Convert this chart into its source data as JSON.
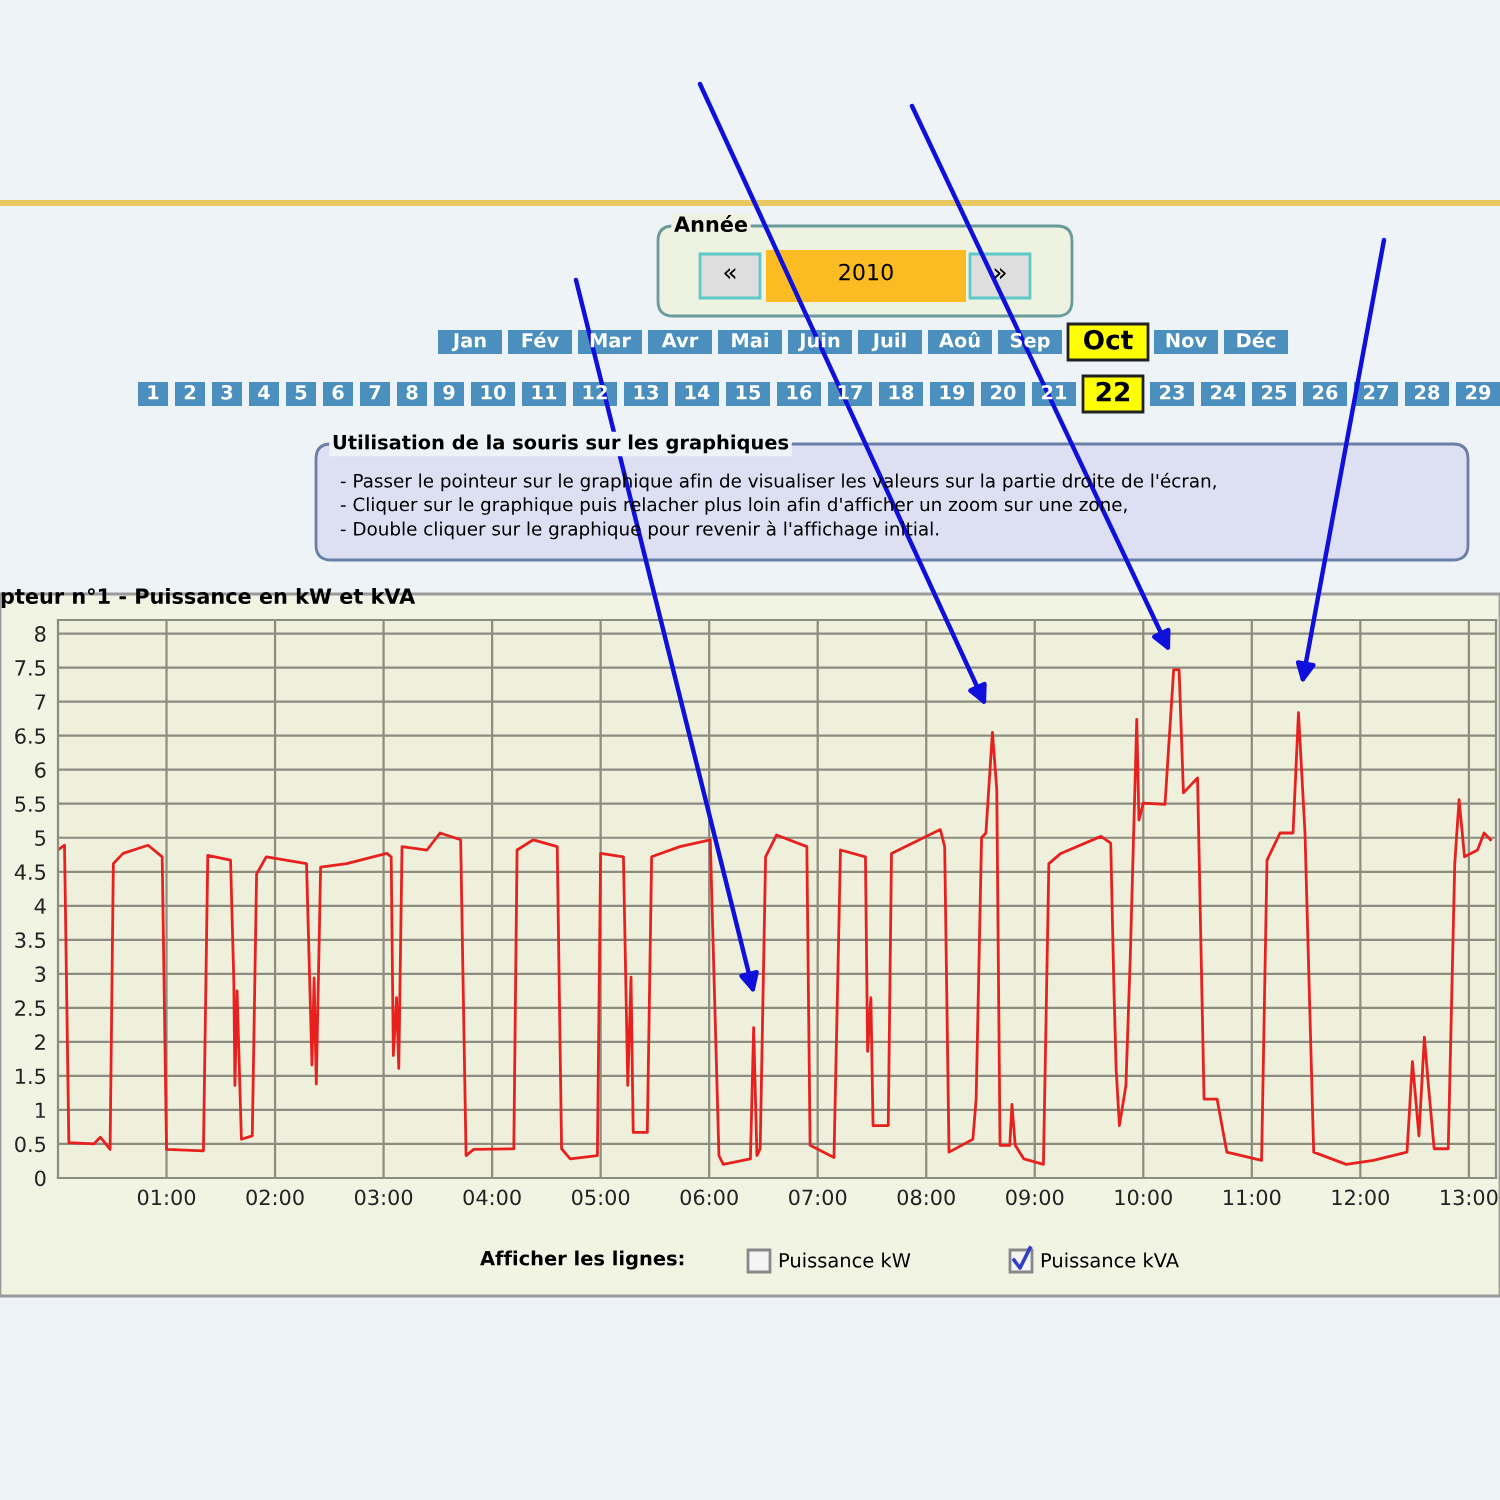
{
  "chart_data": {
    "type": "line",
    "title": "pteur n°1 - Puissance en kW et kVA",
    "x": [
      0,
      0.06,
      0.1,
      0.33,
      0.39,
      0.48,
      0.51,
      0.6,
      0.83,
      0.96,
      1.0,
      1.34,
      1.38,
      1.59,
      1.62,
      1.63,
      1.65,
      1.69,
      1.79,
      1.83,
      1.92,
      2.29,
      2.34,
      2.36,
      2.38,
      2.42,
      2.66,
      3.03,
      3.07,
      3.09,
      3.12,
      3.14,
      3.17,
      3.4,
      3.52,
      3.71,
      3.76,
      3.83,
      4.2,
      4.23,
      4.38,
      4.6,
      4.64,
      4.72,
      4.97,
      5.0,
      5.21,
      5.25,
      5.28,
      5.3,
      5.43,
      5.47,
      5.73,
      6.01,
      6.09,
      6.13,
      6.38,
      6.41,
      6.44,
      6.47,
      6.52,
      6.62,
      6.9,
      6.93,
      7.15,
      7.21,
      7.44,
      7.46,
      7.49,
      7.51,
      7.65,
      7.68,
      8.13,
      8.17,
      8.21,
      8.43,
      8.46,
      8.51,
      8.55,
      8.61,
      8.65,
      8.68,
      8.77,
      8.79,
      8.82,
      8.9,
      9.08,
      9.13,
      9.24,
      9.61,
      9.7,
      9.73,
      9.75,
      9.78,
      9.84,
      9.88,
      9.94,
      9.96,
      10.0,
      10.2,
      10.28,
      10.33,
      10.37,
      10.5,
      10.56,
      10.68,
      10.77,
      11.09,
      11.14,
      11.26,
      11.38,
      11.43,
      11.49,
      11.57,
      11.87,
      12.12,
      12.43,
      12.48,
      12.54,
      12.59,
      12.63,
      12.68,
      12.81,
      12.87,
      12.91,
      12.96,
      13.08,
      13.14,
      13.2
    ],
    "series": [
      {
        "color": "#e8201e",
        "values": [
          4.82,
          4.89,
          0.52,
          0.5,
          0.6,
          0.42,
          4.62,
          4.77,
          4.89,
          4.72,
          0.42,
          0.4,
          4.74,
          4.67,
          2.9,
          1.36,
          2.75,
          0.57,
          0.62,
          4.47,
          4.72,
          4.62,
          1.66,
          2.94,
          1.38,
          4.57,
          4.62,
          4.77,
          4.72,
          1.8,
          2.65,
          1.61,
          4.87,
          4.82,
          5.07,
          4.97,
          0.33,
          0.42,
          0.43,
          4.82,
          4.97,
          4.87,
          0.43,
          0.28,
          0.33,
          4.77,
          4.72,
          1.36,
          2.95,
          0.67,
          0.67,
          4.72,
          4.87,
          4.97,
          0.33,
          0.2,
          0.28,
          2.21,
          0.33,
          0.43,
          4.72,
          5.04,
          4.87,
          0.48,
          0.3,
          4.82,
          4.72,
          1.86,
          2.65,
          0.77,
          0.77,
          4.77,
          5.12,
          4.87,
          0.38,
          0.57,
          1.16,
          5.0,
          5.07,
          6.55,
          5.71,
          0.48,
          0.48,
          1.08,
          0.48,
          0.28,
          0.2,
          4.62,
          4.77,
          5.02,
          4.92,
          2.75,
          1.6,
          0.77,
          1.36,
          3.24,
          6.74,
          5.26,
          5.51,
          5.49,
          7.47,
          7.47,
          5.66,
          5.88,
          1.16,
          1.16,
          0.38,
          0.26,
          4.67,
          5.07,
          5.07,
          6.84,
          5.07,
          0.38,
          0.2,
          0.26,
          0.38,
          1.71,
          0.62,
          2.07,
          1.31,
          0.43,
          0.43,
          4.62,
          5.56,
          4.72,
          4.82,
          5.07,
          4.97
        ]
      }
    ],
    "xlim": [
      0,
      13.25
    ],
    "ylim": [
      0,
      8.2
    ],
    "xticks": [
      {
        "value": 1,
        "label": "01:00"
      },
      {
        "value": 2,
        "label": "02:00"
      },
      {
        "value": 3,
        "label": "03:00"
      },
      {
        "value": 4,
        "label": "04:00"
      },
      {
        "value": 5,
        "label": "05:00"
      },
      {
        "value": 6,
        "label": "06:00"
      },
      {
        "value": 7,
        "label": "07:00"
      },
      {
        "value": 8,
        "label": "08:00"
      },
      {
        "value": 9,
        "label": "09:00"
      },
      {
        "value": 10,
        "label": "10:00"
      },
      {
        "value": 11,
        "label": "11:00"
      },
      {
        "value": 12,
        "label": "12:00"
      },
      {
        "value": 13,
        "label": "13:00"
      }
    ],
    "yticks": [
      0,
      0.5,
      1,
      1.5,
      2,
      2.5,
      3,
      3.5,
      4,
      4.5,
      5,
      5.5,
      6,
      6.5,
      7,
      7.5,
      8
    ],
    "grid": true,
    "marker": "none",
    "line_style": "solid",
    "annotations": [
      "Année",
      "«",
      "2010",
      "»",
      "Jan",
      "Fév",
      "Mar",
      "Avr",
      "Mai",
      "Juin",
      "Juil",
      "Aoû",
      "Sep",
      "Oct",
      "Nov",
      "Déc",
      "1",
      "2",
      "3",
      "4",
      "5",
      "6",
      "7",
      "8",
      "9",
      "10",
      "11",
      "12",
      "13",
      "14",
      "15",
      "16",
      "17",
      "18",
      "19",
      "20",
      "21",
      "22",
      "23",
      "24",
      "25",
      "26",
      "27",
      "28",
      "29",
      "Utilisation de la souris sur les graphiques",
      "- Passer le pointeur sur le graphique afin de visualiser les valeurs sur la partie droite de l'écran,",
      "- Cliquer sur le graphique puis relacher plus loin afin d'afficher un zoom sur une zone,",
      "- Double cliquer sur le graphique pour revenir à l'affichage initial.",
      "Afficher les lignes:",
      "Puissance kW",
      "Puissance kVA"
    ]
  }
}
